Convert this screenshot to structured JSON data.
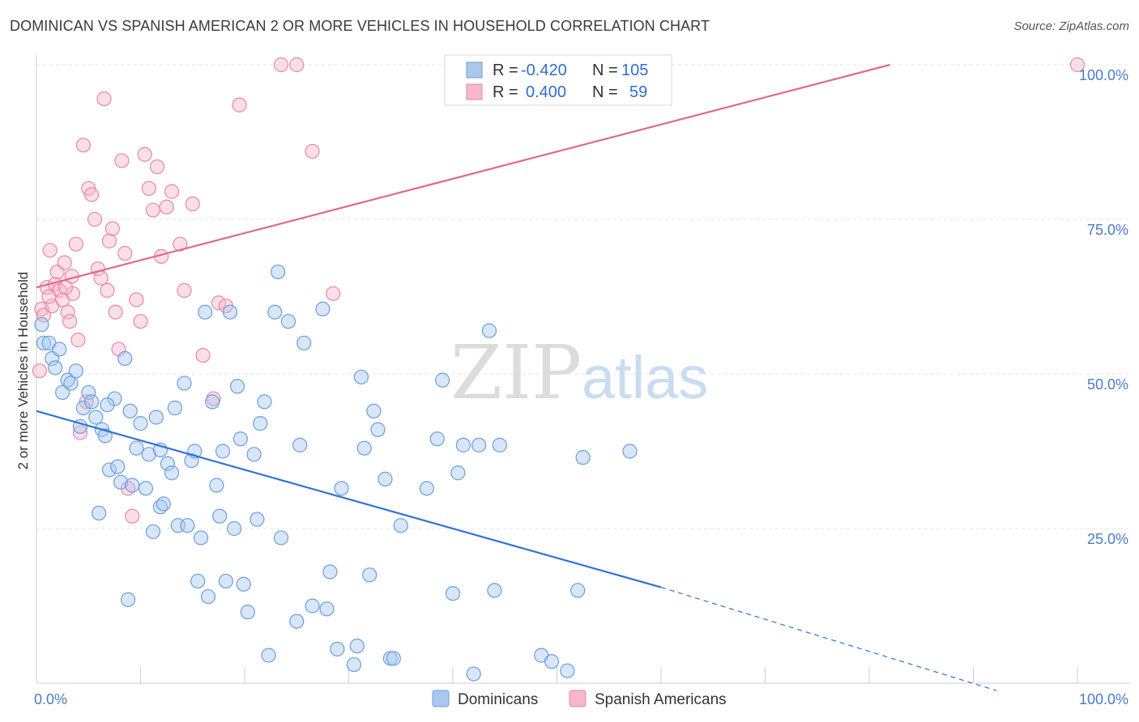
{
  "title": "DOMINICAN VS SPANISH AMERICAN 2 OR MORE VEHICLES IN HOUSEHOLD CORRELATION CHART",
  "source": "Source: ZipAtlas.com",
  "watermark": {
    "zip": "ZIP",
    "atlas": "atlas"
  },
  "colors": {
    "blue_fill": "#a9c8ee",
    "blue_stroke": "#6a9fde",
    "blue_line": "#2f72d4",
    "pink_fill": "#f6b8cb",
    "pink_stroke": "#e987a6",
    "pink_line": "#e0688f",
    "tick_text": "#4a7cc4",
    "grid": "#e4e4e4"
  },
  "legend": {
    "rows": [
      {
        "r_label": "R =",
        "r_value": "-0.420",
        "n_label": "N =",
        "n_value": "105",
        "series": "blue"
      },
      {
        "r_label": "R =",
        "r_value": "0.400",
        "n_label": "N =",
        "n_value": "59",
        "series": "pink"
      }
    ]
  },
  "bottom_legend": [
    "Dominicans",
    "Spanish Americans"
  ],
  "chart_data": {
    "type": "scatter",
    "title": "DOMINICAN VS SPANISH AMERICAN 2 OR MORE VEHICLES IN HOUSEHOLD CORRELATION CHART",
    "xlabel": "",
    "ylabel": "2 or more Vehicles in Household",
    "xlim": [
      0,
      100
    ],
    "ylim": [
      0,
      100
    ],
    "x_tick_labels": [
      "0.0%",
      "100.0%"
    ],
    "y_tick_labels": [
      "25.0%",
      "50.0%",
      "75.0%",
      "100.0%"
    ],
    "y_ticks": [
      25,
      50,
      75,
      100
    ],
    "grid": true,
    "legend_position": "top-center",
    "series": [
      {
        "name": "Dominicans",
        "color": "#a9c8ee",
        "trend": {
          "x0": 0,
          "y0": 44,
          "x1": 60,
          "y1": 15.5,
          "dash_to_x": 100,
          "dash_to_y": -3
        },
        "points": [
          [
            0.5,
            58
          ],
          [
            0.7,
            55
          ],
          [
            1.2,
            55
          ],
          [
            1.5,
            52.5
          ],
          [
            1.8,
            51
          ],
          [
            2.2,
            54
          ],
          [
            2.5,
            47
          ],
          [
            3,
            49
          ],
          [
            3.3,
            48.5
          ],
          [
            3.8,
            50.5
          ],
          [
            4.2,
            41.5
          ],
          [
            4.5,
            44.5
          ],
          [
            5,
            47
          ],
          [
            5.3,
            45.5
          ],
          [
            5.7,
            43
          ],
          [
            6,
            27.5
          ],
          [
            6.3,
            41
          ],
          [
            6.6,
            40
          ],
          [
            7,
            34.5
          ],
          [
            7.5,
            46
          ],
          [
            7.8,
            35
          ],
          [
            8.1,
            32.5
          ],
          [
            8.5,
            52.5
          ],
          [
            8.8,
            13.5
          ],
          [
            9.2,
            32
          ],
          [
            9.6,
            38
          ],
          [
            10,
            42
          ],
          [
            10.5,
            31.5
          ],
          [
            10.8,
            37
          ],
          [
            11.2,
            24.5
          ],
          [
            11.5,
            43
          ],
          [
            11.9,
            28.5
          ],
          [
            12.2,
            29
          ],
          [
            12.6,
            35.5
          ],
          [
            13,
            34
          ],
          [
            13.3,
            44.5
          ],
          [
            13.6,
            25.5
          ],
          [
            14.2,
            48.5
          ],
          [
            14.5,
            25.5
          ],
          [
            14.9,
            36
          ],
          [
            15.2,
            37.5
          ],
          [
            15.5,
            16.5
          ],
          [
            15.8,
            23.5
          ],
          [
            16.2,
            60
          ],
          [
            16.5,
            14
          ],
          [
            16.9,
            45.5
          ],
          [
            17.3,
            32
          ],
          [
            17.6,
            27
          ],
          [
            17.9,
            37.5
          ],
          [
            18.2,
            16.5
          ],
          [
            18.6,
            60
          ],
          [
            19,
            25
          ],
          [
            19.3,
            48
          ],
          [
            19.6,
            39.5
          ],
          [
            19.9,
            16
          ],
          [
            20.3,
            11.5
          ],
          [
            20.9,
            37
          ],
          [
            21.2,
            26.5
          ],
          [
            21.5,
            42
          ],
          [
            21.9,
            45.5
          ],
          [
            22.3,
            4.5
          ],
          [
            22.9,
            60
          ],
          [
            23.2,
            66.5
          ],
          [
            23.5,
            23.5
          ],
          [
            24.2,
            58.5
          ],
          [
            25,
            10
          ],
          [
            25.3,
            38.5
          ],
          [
            25.7,
            55
          ],
          [
            26.5,
            12.5
          ],
          [
            27.5,
            60.5
          ],
          [
            27.9,
            12
          ],
          [
            28.2,
            18
          ],
          [
            28.9,
            5.5
          ],
          [
            29.3,
            31.5
          ],
          [
            30.5,
            3
          ],
          [
            30.8,
            6
          ],
          [
            31.2,
            49.5
          ],
          [
            31.5,
            38
          ],
          [
            32,
            17.5
          ],
          [
            32.4,
            44
          ],
          [
            32.8,
            41
          ],
          [
            33.5,
            33
          ],
          [
            34,
            4
          ],
          [
            34.3,
            4
          ],
          [
            35,
            25.5
          ],
          [
            37.5,
            31.5
          ],
          [
            38.5,
            39.5
          ],
          [
            39,
            49
          ],
          [
            40,
            14.5
          ],
          [
            40.5,
            34
          ],
          [
            41,
            38.5
          ],
          [
            42,
            1.5
          ],
          [
            42.5,
            38.5
          ],
          [
            43.5,
            57
          ],
          [
            44,
            15
          ],
          [
            44.5,
            38.5
          ],
          [
            48.5,
            4.5
          ],
          [
            49.5,
            3.5
          ],
          [
            51,
            2
          ],
          [
            52,
            15
          ],
          [
            52.5,
            36.5
          ],
          [
            57,
            37.5
          ],
          [
            6.8,
            45
          ],
          [
            9,
            44
          ],
          [
            11.9,
            37.7
          ]
        ]
      },
      {
        "name": "Spanish Americans",
        "color": "#f6b8cb",
        "trend": {
          "x0": 0,
          "y0": 64,
          "x1": 82,
          "y1": 100
        },
        "points": [
          [
            0.3,
            50.5
          ],
          [
            0.5,
            60.5
          ],
          [
            0.7,
            59.5
          ],
          [
            1,
            64
          ],
          [
            1.3,
            70
          ],
          [
            1.5,
            61
          ],
          [
            1.8,
            64.5
          ],
          [
            2,
            66.5
          ],
          [
            2.2,
            63.5
          ],
          [
            2.5,
            62
          ],
          [
            2.7,
            68
          ],
          [
            3,
            60
          ],
          [
            3.2,
            58.5
          ],
          [
            3.5,
            63
          ],
          [
            3.8,
            71
          ],
          [
            4,
            55.5
          ],
          [
            4.2,
            40.5
          ],
          [
            4.5,
            87
          ],
          [
            4.8,
            45.5
          ],
          [
            5,
            80
          ],
          [
            5.3,
            79
          ],
          [
            5.6,
            75
          ],
          [
            5.9,
            67
          ],
          [
            6.2,
            65.5
          ],
          [
            6.5,
            94.5
          ],
          [
            6.8,
            63.5
          ],
          [
            7,
            71.5
          ],
          [
            7.3,
            73.5
          ],
          [
            7.6,
            60
          ],
          [
            7.9,
            54
          ],
          [
            8.2,
            84.5
          ],
          [
            8.5,
            69.5
          ],
          [
            8.8,
            31.5
          ],
          [
            9.2,
            27
          ],
          [
            9.6,
            62
          ],
          [
            10,
            58.5
          ],
          [
            10.4,
            85.5
          ],
          [
            10.8,
            80
          ],
          [
            11.2,
            76.5
          ],
          [
            11.6,
            83.5
          ],
          [
            12,
            69
          ],
          [
            12.5,
            77
          ],
          [
            13,
            79.5
          ],
          [
            13.8,
            71
          ],
          [
            14.2,
            63.5
          ],
          [
            15,
            77.5
          ],
          [
            16,
            53
          ],
          [
            17,
            46
          ],
          [
            17.5,
            61.5
          ],
          [
            18.2,
            61
          ],
          [
            19.5,
            93.5
          ],
          [
            23.5,
            100
          ],
          [
            25,
            100
          ],
          [
            26.5,
            86
          ],
          [
            28.5,
            63
          ],
          [
            100,
            100
          ],
          [
            1.2,
            62.5
          ],
          [
            2.8,
            64
          ],
          [
            3.4,
            65.8
          ]
        ]
      }
    ]
  }
}
